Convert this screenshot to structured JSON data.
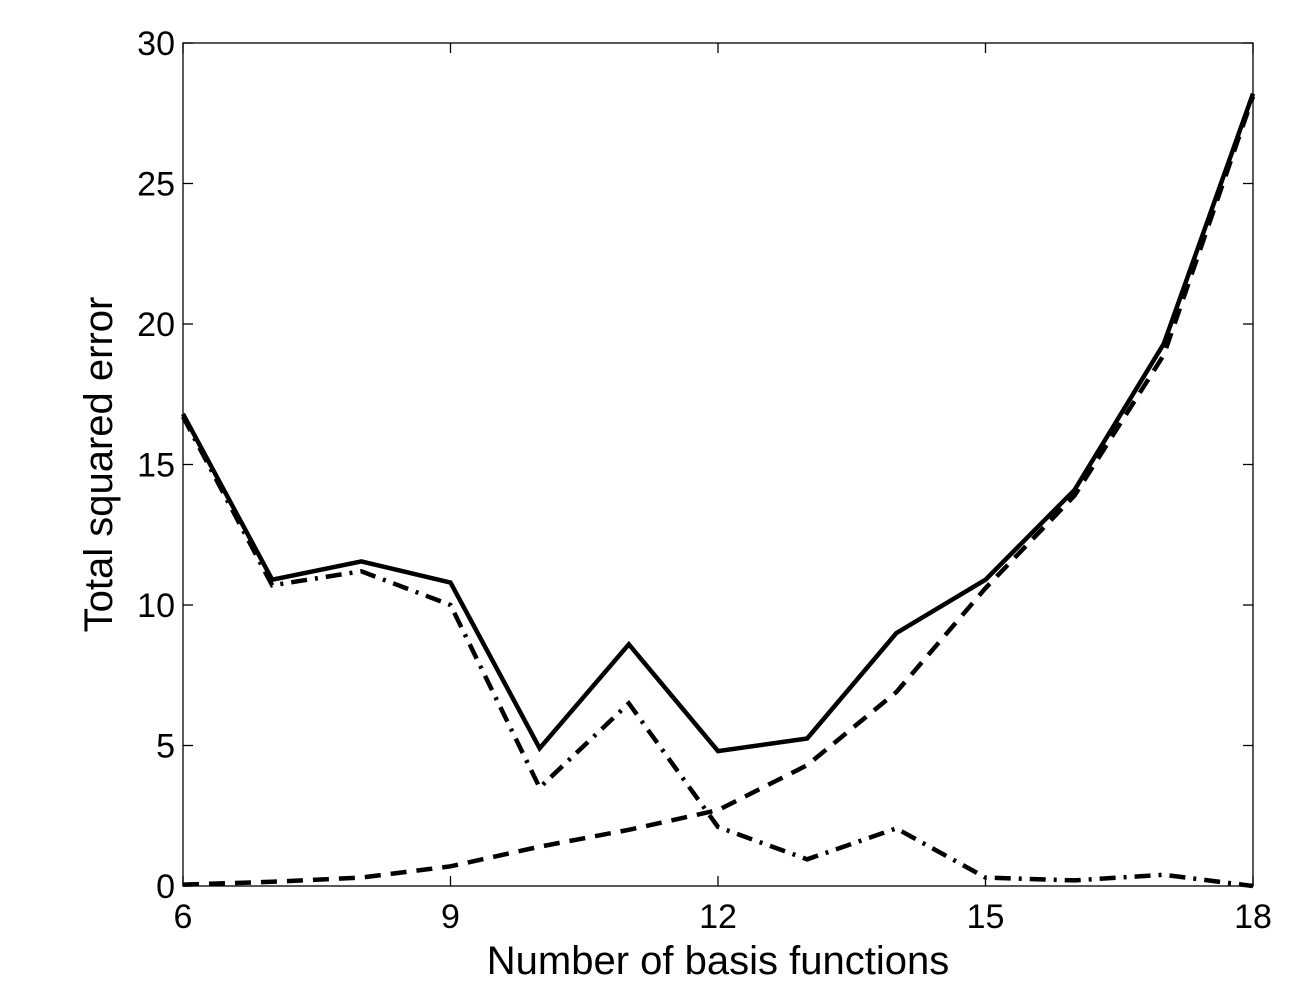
{
  "chart_data": {
    "type": "line",
    "title": "",
    "xlabel": "Number of basis functions",
    "ylabel": "Total squared error",
    "xlim": [
      6,
      18
    ],
    "ylim": [
      0,
      30
    ],
    "xticks": [
      6,
      9,
      12,
      15,
      18
    ],
    "yticks": [
      0,
      5,
      10,
      15,
      20,
      25,
      30
    ],
    "grid": false,
    "legend": "none",
    "x": [
      6,
      7,
      8,
      9,
      10,
      11,
      12,
      13,
      14,
      15,
      16,
      17,
      18
    ],
    "series": [
      {
        "style": "solid",
        "color": "#000000",
        "values": [
          16.8,
          10.9,
          11.55,
          10.8,
          4.9,
          8.6,
          4.8,
          5.25,
          9.0,
          10.9,
          14.1,
          19.3,
          28.2
        ]
      },
      {
        "style": "dashed",
        "color": "#000000",
        "values": [
          0.05,
          0.15,
          0.3,
          0.7,
          1.4,
          2.0,
          2.7,
          4.3,
          6.9,
          10.6,
          13.9,
          18.9,
          28.1
        ]
      },
      {
        "style": "dashdot",
        "color": "#000000",
        "values": [
          16.7,
          10.7,
          11.2,
          10.0,
          3.5,
          6.5,
          2.1,
          0.95,
          2.05,
          0.3,
          0.2,
          0.4,
          0.0
        ]
      }
    ]
  }
}
